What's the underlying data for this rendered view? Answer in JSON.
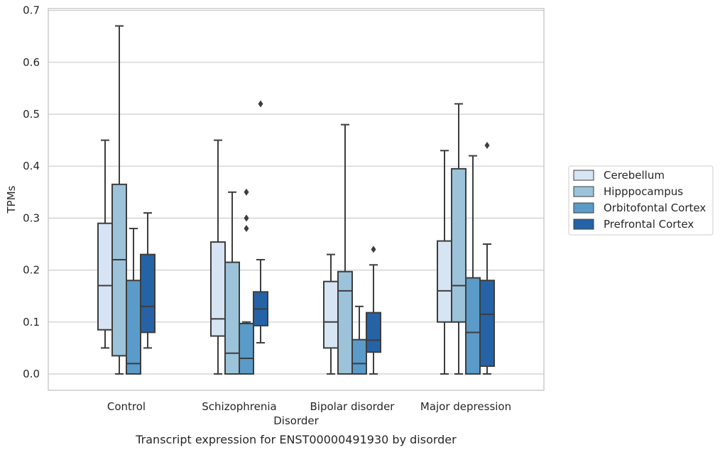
{
  "chart_data": {
    "type": "box",
    "xlabel": "Disorder",
    "ylabel": "TPMs",
    "caption": "Transcript expression for ENST00000491930 by disorder",
    "ylim": [
      -0.032,
      0.705
    ],
    "yticks": [
      "0.0",
      "0.1",
      "0.2",
      "0.3",
      "0.4",
      "0.5",
      "0.6",
      "0.7"
    ],
    "grid": true,
    "legend_position": "right",
    "categories": [
      "Control",
      "Schizophrenia",
      "Bipolar disorder",
      "Major depression"
    ],
    "series": [
      {
        "name": "Cerebellum",
        "color": "#d6e4f3",
        "boxes": [
          {
            "min": 0.05,
            "q1": 0.085,
            "median": 0.17,
            "q3": 0.29,
            "max": 0.45,
            "outliers": []
          },
          {
            "min": 0.0,
            "q1": 0.073,
            "median": 0.106,
            "q3": 0.254,
            "max": 0.45,
            "outliers": []
          },
          {
            "min": 0.0,
            "q1": 0.05,
            "median": 0.1,
            "q3": 0.178,
            "max": 0.23,
            "outliers": []
          },
          {
            "min": 0.0,
            "q1": 0.1,
            "median": 0.16,
            "q3": 0.256,
            "max": 0.43,
            "outliers": []
          }
        ]
      },
      {
        "name": "Hipppocampus",
        "color": "#9cc3da",
        "boxes": [
          {
            "min": 0.0,
            "q1": 0.035,
            "median": 0.22,
            "q3": 0.365,
            "max": 0.67,
            "outliers": []
          },
          {
            "min": 0.0,
            "q1": 0.0,
            "median": 0.04,
            "q3": 0.215,
            "max": 0.35,
            "outliers": []
          },
          {
            "min": 0.0,
            "q1": 0.0,
            "median": 0.16,
            "q3": 0.197,
            "max": 0.48,
            "outliers": []
          },
          {
            "min": 0.0,
            "q1": 0.1,
            "median": 0.17,
            "q3": 0.395,
            "max": 0.52,
            "outliers": []
          }
        ]
      },
      {
        "name": "Orbitofontal Cortex",
        "color": "#5a9bc9",
        "boxes": [
          {
            "min": 0.0,
            "q1": 0.0,
            "median": 0.02,
            "q3": 0.18,
            "max": 0.28,
            "outliers": []
          },
          {
            "min": 0.0,
            "q1": 0.0,
            "median": 0.03,
            "q3": 0.097,
            "max": 0.1,
            "outliers": [
              0.28,
              0.3,
              0.35
            ]
          },
          {
            "min": 0.0,
            "q1": 0.0,
            "median": 0.02,
            "q3": 0.066,
            "max": 0.13,
            "outliers": []
          },
          {
            "min": 0.0,
            "q1": 0.0,
            "median": 0.08,
            "q3": 0.185,
            "max": 0.42,
            "outliers": []
          }
        ]
      },
      {
        "name": "Prefrontal Cortex",
        "color": "#2563a6",
        "boxes": [
          {
            "min": 0.05,
            "q1": 0.08,
            "median": 0.13,
            "q3": 0.23,
            "max": 0.31,
            "outliers": []
          },
          {
            "min": 0.06,
            "q1": 0.093,
            "median": 0.125,
            "q3": 0.158,
            "max": 0.22,
            "outliers": [
              0.52
            ]
          },
          {
            "min": 0.0,
            "q1": 0.042,
            "median": 0.065,
            "q3": 0.118,
            "max": 0.21,
            "outliers": [
              0.24
            ]
          },
          {
            "min": 0.0,
            "q1": 0.015,
            "median": 0.115,
            "q3": 0.18,
            "max": 0.25,
            "outliers": [
              0.44
            ]
          }
        ]
      }
    ]
  }
}
